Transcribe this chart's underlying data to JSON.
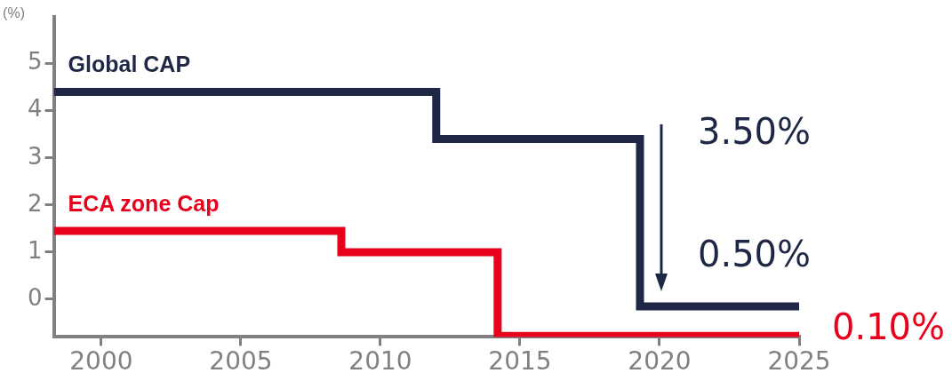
{
  "chart_data": {
    "type": "step",
    "ylabel": "(%)",
    "series": [
      {
        "name": "Global CAP",
        "color": "#1f2747",
        "x": [
          1998.3,
          2012,
          2019.3,
          2025
        ],
        "values": [
          4.4,
          3.4,
          -0.15,
          -0.15
        ]
      },
      {
        "name": "ECA zone Cap",
        "color": "#e8001c",
        "x": [
          1998.3,
          2008.6,
          2014.2,
          2025
        ],
        "values": [
          1.45,
          1.0,
          -0.78,
          -0.78
        ]
      }
    ],
    "xlim": [
      1998.3,
      2025
    ],
    "xticks": [
      2000,
      2005,
      2010,
      2015,
      2020,
      2025
    ],
    "ylim": [
      -0.8,
      6
    ],
    "yticks": [
      0,
      1,
      2,
      3,
      4,
      5
    ],
    "annotations": [
      "3.50%",
      "0.50%",
      "0.10%"
    ],
    "grid": false,
    "legend": false
  }
}
